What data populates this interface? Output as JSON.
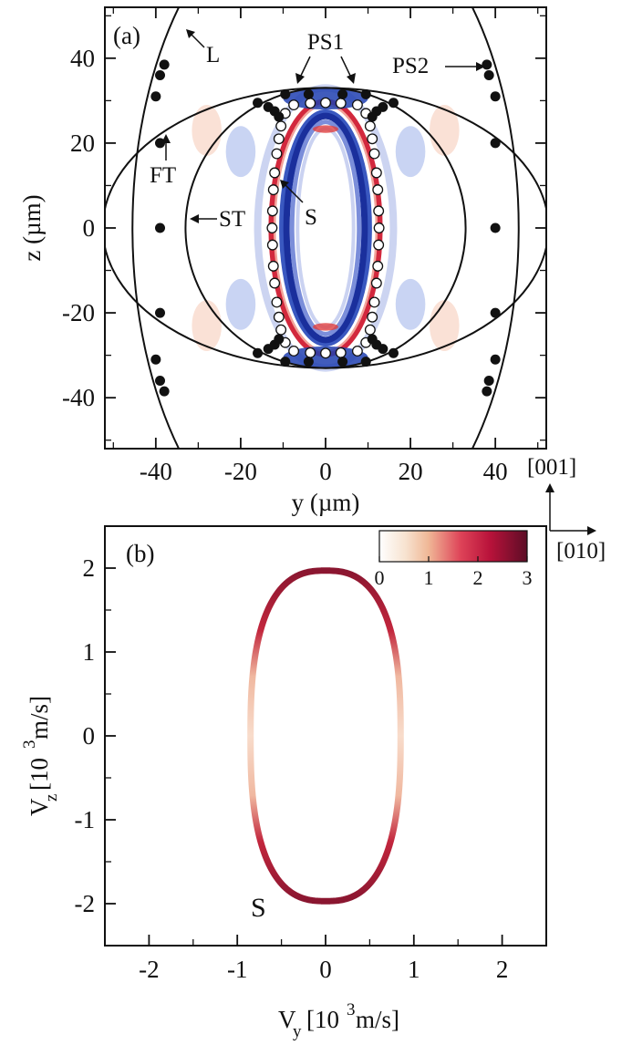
{
  "figure": {
    "orientation_labels": {
      "vertical": "[001]",
      "horizontal": "[010]"
    }
  },
  "chart_data": [
    {
      "type": "scatter",
      "panel_label": "(a)",
      "xlabel": "y (µm)",
      "ylabel": "z (µm)",
      "xlim": [
        -52,
        52
      ],
      "ylim": [
        -52,
        52
      ],
      "xticks": [
        -40,
        -20,
        0,
        20,
        40
      ],
      "yticks": [
        -40,
        -20,
        0,
        20,
        40
      ],
      "background": "displacement field map: blue-white-red",
      "curves": [
        {
          "name": "L",
          "shape": "ellipse",
          "center": [
            0,
            0
          ],
          "semi_axes": [
            45.5,
            80
          ]
        },
        {
          "name": "FT",
          "shape": "ellipse",
          "center": [
            0,
            0
          ],
          "semi_axes": [
            52.5,
            33
          ]
        },
        {
          "name": "ST",
          "shape": "ellipse",
          "center": [
            0,
            0
          ],
          "semi_axes": [
            33,
            33
          ]
        }
      ],
      "annotations": [
        "L",
        "PS1",
        "PS2",
        "FT",
        "ST",
        "S"
      ],
      "series": [
        {
          "name": "S",
          "marker": "open-circle",
          "points": [
            [
              0.0,
              29.5
            ],
            [
              3.6,
              29.4
            ],
            [
              7.5,
              29.0
            ],
            [
              9.5,
              27.0
            ],
            [
              10.5,
              24.0
            ],
            [
              11.0,
              21.0
            ],
            [
              11.5,
              17.5
            ],
            [
              12.0,
              13.0
            ],
            [
              12.3,
              9.0
            ],
            [
              12.5,
              4.0
            ],
            [
              12.6,
              0.0
            ],
            [
              12.5,
              -4.0
            ],
            [
              12.3,
              -9.0
            ],
            [
              12.0,
              -13.0
            ],
            [
              11.5,
              -17.5
            ],
            [
              11.0,
              -21.0
            ],
            [
              10.5,
              -24.0
            ],
            [
              9.5,
              -27.0
            ],
            [
              7.5,
              -29.0
            ],
            [
              3.6,
              -29.4
            ],
            [
              0.0,
              -29.5
            ],
            [
              -3.6,
              -29.4
            ],
            [
              -7.5,
              -29.0
            ],
            [
              -9.5,
              -27.0
            ],
            [
              -10.5,
              -24.0
            ],
            [
              -11.0,
              -21.0
            ],
            [
              -11.5,
              -17.5
            ],
            [
              -12.0,
              -13.0
            ],
            [
              -12.3,
              -9.0
            ],
            [
              -12.5,
              -4.0
            ],
            [
              -12.6,
              0.0
            ],
            [
              -12.5,
              4.0
            ],
            [
              -12.3,
              9.0
            ],
            [
              -12.0,
              13.0
            ],
            [
              -11.5,
              17.5
            ],
            [
              -11.0,
              21.0
            ],
            [
              -10.5,
              24.0
            ],
            [
              -9.5,
              27.0
            ],
            [
              -7.5,
              29.0
            ],
            [
              -3.6,
              29.4
            ]
          ]
        },
        {
          "name": "",
          "marker": "filled-circle",
          "points": [
            [
              -39,
              0
            ],
            [
              40,
              0
            ],
            [
              -39,
              20
            ],
            [
              40,
              20
            ],
            [
              -39,
              -20
            ],
            [
              40,
              -20
            ],
            [
              -38,
              38.5
            ],
            [
              -39,
              36
            ],
            [
              -40,
              31
            ],
            [
              38,
              38.5
            ],
            [
              38.5,
              36
            ],
            [
              40,
              31
            ],
            [
              -38,
              -38.5
            ],
            [
              -39,
              -36
            ],
            [
              -40,
              -31
            ],
            [
              38,
              -38.5
            ],
            [
              38.5,
              -36
            ],
            [
              40,
              -31
            ],
            [
              -16,
              29.5
            ],
            [
              -13.5,
              28.5
            ],
            [
              -12,
              27.5
            ],
            [
              -11,
              26.2
            ],
            [
              16,
              29.5
            ],
            [
              13.5,
              28.5
            ],
            [
              12,
              27.5
            ],
            [
              11,
              26.2
            ],
            [
              -16,
              -29.5
            ],
            [
              -13.5,
              -28.5
            ],
            [
              -12,
              -27.5
            ],
            [
              -11,
              -26.2
            ],
            [
              16,
              -29.5
            ],
            [
              13.5,
              -28.5
            ],
            [
              12,
              -27.5
            ],
            [
              11,
              -26.2
            ],
            [
              -9.5,
              31.5
            ],
            [
              9.5,
              31.5
            ],
            [
              -9.5,
              -31.5
            ],
            [
              9.5,
              -31.5
            ],
            [
              -4,
              31.5
            ],
            [
              4,
              31.5
            ],
            [
              -4,
              -31.5
            ],
            [
              4,
              -31.5
            ]
          ]
        }
      ]
    },
    {
      "type": "line",
      "panel_label": "(b)",
      "xlabel": "V_y [10^3 m/s]",
      "ylabel": "V_z [10^3 m/s]",
      "xlim": [
        -2.5,
        2.5
      ],
      "ylim": [
        -2.5,
        2.5
      ],
      "xticks": [
        -2,
        -1,
        0,
        1,
        2
      ],
      "yticks": [
        -2,
        -1,
        0,
        1,
        2
      ],
      "curve_label": "S",
      "series": [
        {
          "name": "S",
          "shape": "rounded-rectangle-superellipse",
          "semi_axes": [
            0.85,
            1.97
          ],
          "exponent": 2.6
        }
      ],
      "colorbar": {
        "ticks": [
          0,
          1,
          2,
          3
        ],
        "range": [
          0,
          3
        ],
        "colors": [
          "#ffffff",
          "#f2c4a4",
          "#d21e3c",
          "#5c0d26"
        ]
      }
    }
  ]
}
